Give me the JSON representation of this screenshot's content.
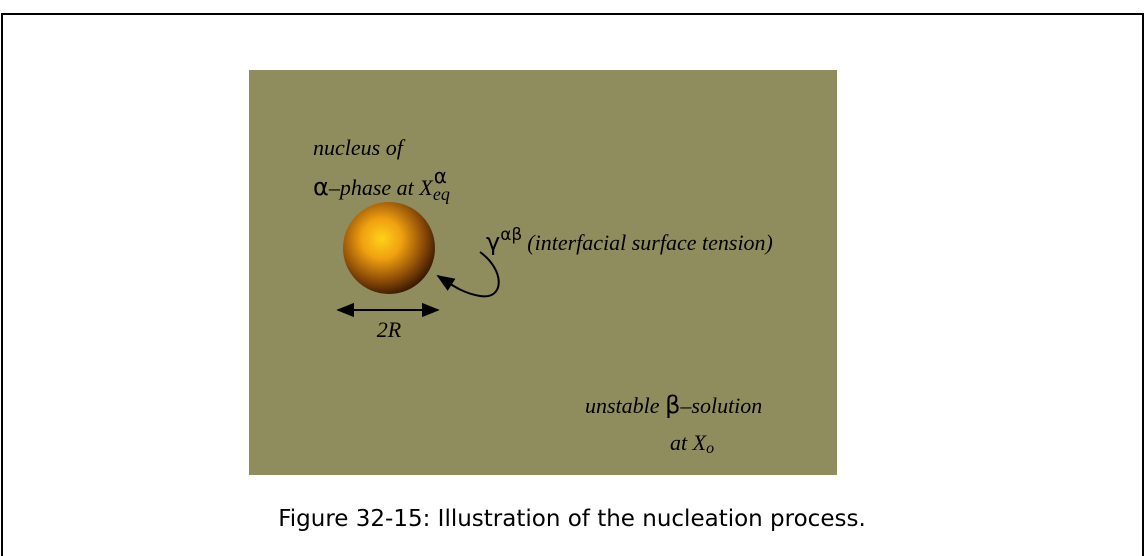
{
  "figure": {
    "nucleus_label": {
      "line1": "nucleus of",
      "line2": {
        "symbol": "α",
        "text": "–phase at X",
        "sup": "α",
        "sub": "eq"
      }
    },
    "tension_label": {
      "symbol": "γ",
      "sup": "αβ",
      "text": "(interfacial surface tension)"
    },
    "diameter_label": "2R",
    "solution_label": {
      "line1": {
        "text1": "unstable ",
        "symbol": "β",
        "text2": "–solution"
      },
      "line2": {
        "text": "at X",
        "sub": "o"
      }
    },
    "caption": "Figure 32-15: Illustration of the nucleation process."
  }
}
